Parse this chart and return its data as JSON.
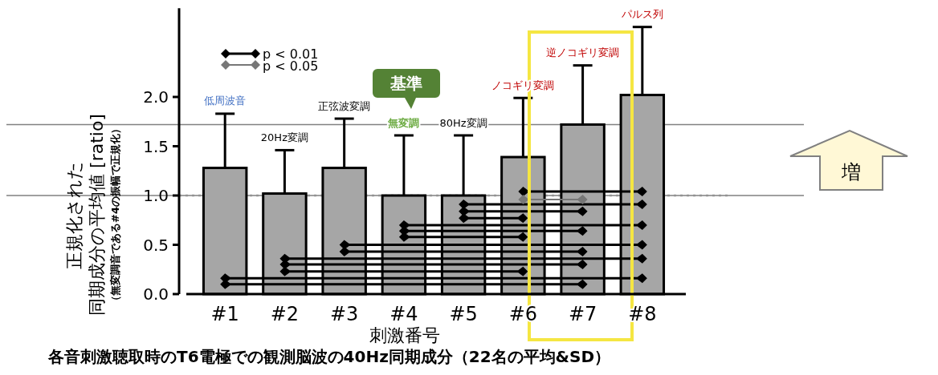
{
  "chart_data": {
    "type": "bar",
    "title": "各音刺激聴取時のT6電極での観測脳波の40Hz同期成分（22名の平均&SD）",
    "xlabel": "刺激番号",
    "ylabel": "正規化された",
    "categories": [
      "#1",
      "#2",
      "#3",
      "#4",
      "#5",
      "#6",
      "#7",
      "#8"
    ],
    "values": [
      1.28,
      1.02,
      1.28,
      1.0,
      1.0,
      1.39,
      1.72,
      2.02
    ],
    "errors": [
      [
        1.28,
        1.83
      ],
      [
        1.02,
        1.46
      ],
      [
        1.28,
        1.78
      ],
      [
        1.0,
        1.61
      ],
      [
        1.0,
        1.61
      ],
      [
        1.39,
        1.99
      ],
      [
        1.72,
        2.32
      ],
      [
        2.02,
        2.71
      ]
    ],
    "color": "#a6a6a6",
    "ylim": [
      0,
      2.9
    ],
    "yticks": [
      {
        "value": 0,
        "label": "0.0"
      },
      0.5,
      {
        "value": 1,
        "label": "1.0"
      },
      1.5,
      {
        "value": 2,
        "label": "2.0"
      }
    ],
    "grid": false,
    "ref_lines": [
      {
        "axis": "y",
        "value": 1.0,
        "line_style": "dotted",
        "color": "#c8c8c8"
      },
      {
        "axis": "y",
        "value": 1.0,
        "line_style": "solid",
        "color": "#808080"
      },
      {
        "axis": "y",
        "value": 1.72,
        "line_style": "solid",
        "color": "#808080"
      }
    ],
    "annotations": [
      "低周波音",
      "20Hz変調",
      "正弦波変調",
      "無変調",
      "80Hz変調",
      "ノコギリ変調",
      "逆ノコギリ変調",
      "パルス列",
      "基準",
      "増",
      "p < 0.01",
      "p < 0.05",
      "（無変調音である#4の振幅で正規化）",
      "同期成分の平均値 [ratio]"
    ]
  }
}
